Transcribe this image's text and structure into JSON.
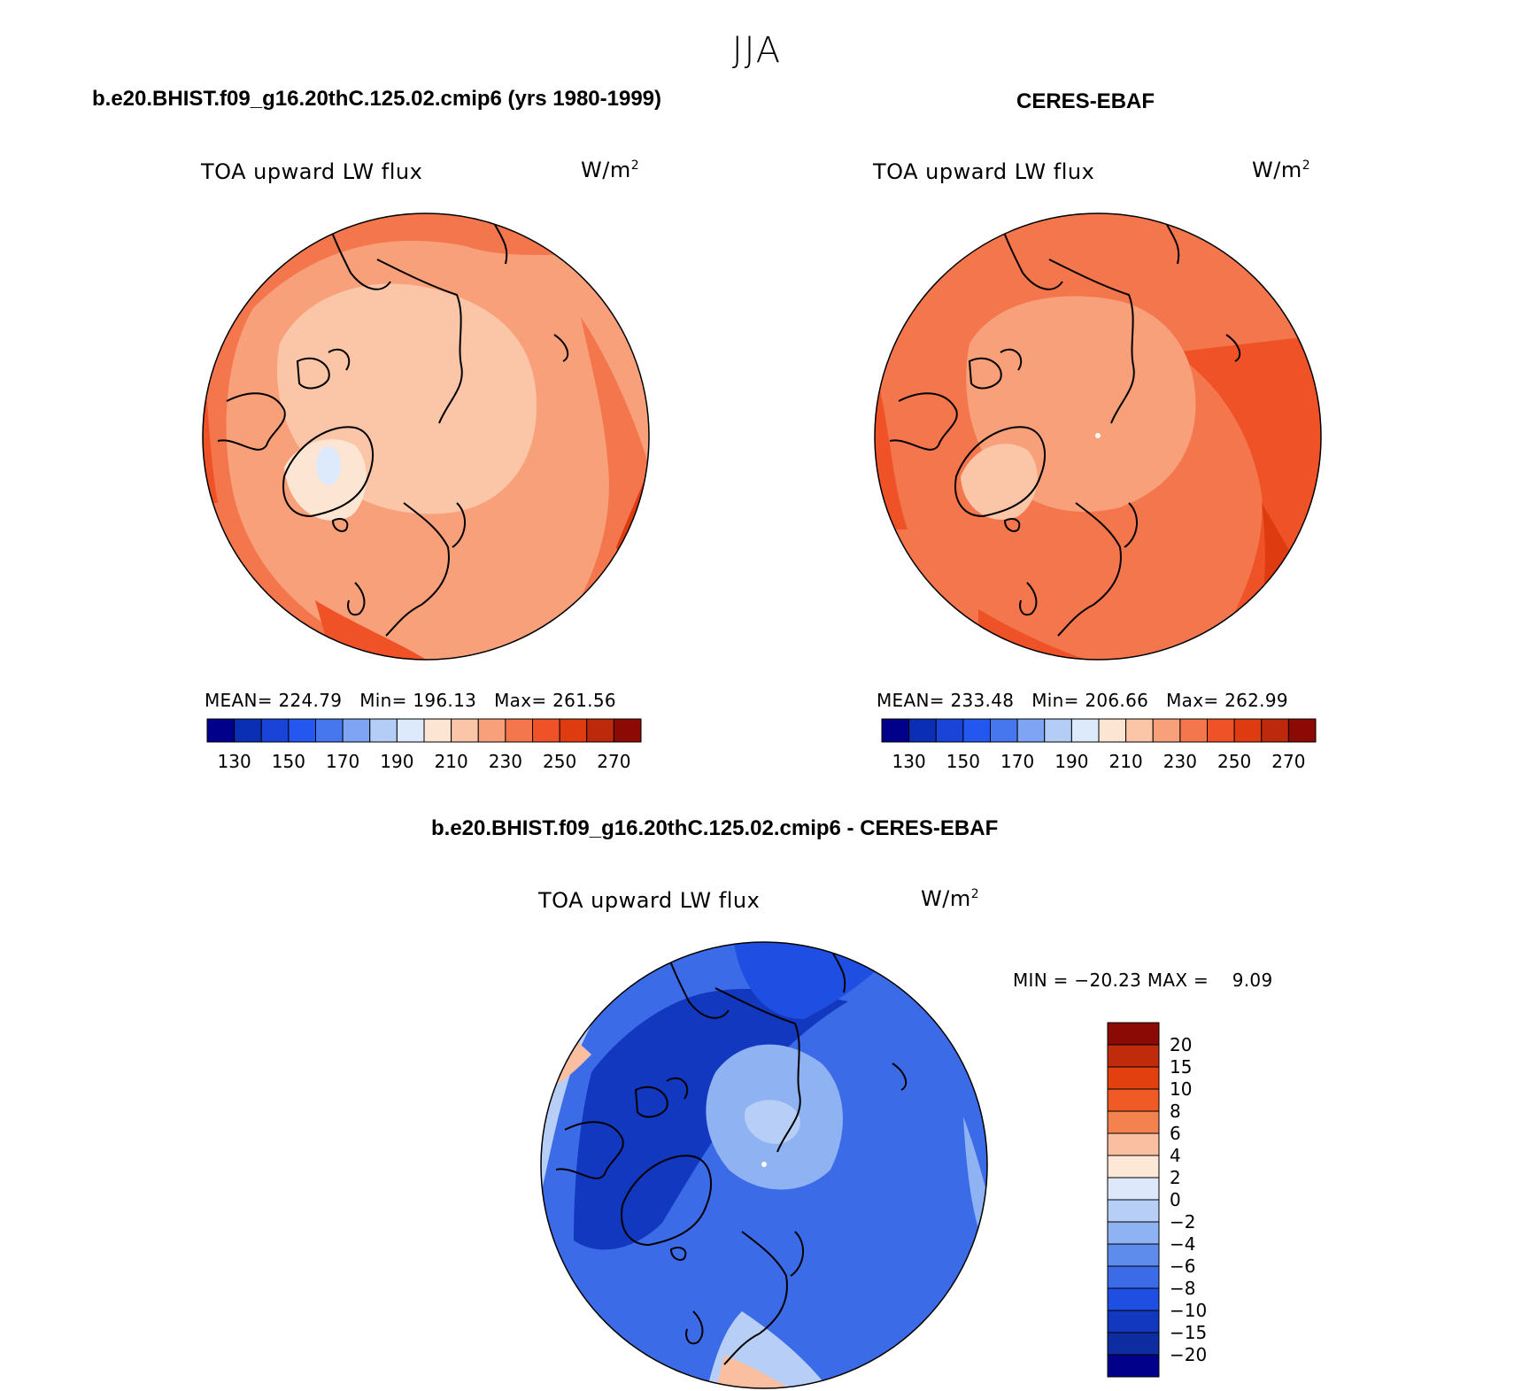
{
  "figure": {
    "title": "JJA"
  },
  "panels": [
    {
      "title": "b.e20.BHIST.f09_g16.20thC.125.02.cmip6 (yrs 1980-1999)",
      "variable": "TOA upward LW flux",
      "units_base": "W/m",
      "units_exp": "2",
      "stats": {
        "mean_label": "MEAN=",
        "mean": "224.79",
        "min_label": "Min=",
        "min": "196.13",
        "max_label": "Max=",
        "max": "261.56"
      }
    },
    {
      "title": "CERES-EBAF",
      "variable": "TOA upward LW flux",
      "units_base": "W/m",
      "units_exp": "2",
      "stats": {
        "mean_label": "MEAN=",
        "mean": "233.48",
        "min_label": "Min=",
        "min": "206.66",
        "max_label": "Max=",
        "max": "262.99"
      }
    },
    {
      "title": "b.e20.BHIST.f09_g16.20thC.125.02.cmip6 - CERES-EBAF",
      "variable": "TOA upward LW flux",
      "units_base": "W/m",
      "units_exp": "2",
      "range_text": "MIN = −20.23 MAX =    9.09"
    }
  ],
  "abs_colorbar": {
    "colors": [
      "#00008b",
      "#0a2fb4",
      "#1a44d8",
      "#2456f0",
      "#4777ee",
      "#7ea4f3",
      "#b3cdf7",
      "#ddeafb",
      "#fde5d3",
      "#fbc5a8",
      "#f8a07a",
      "#f4764d",
      "#ee5226",
      "#df3b10",
      "#bd2a0b",
      "#8c0a05"
    ],
    "labels": [
      "130",
      "150",
      "170",
      "190",
      "210",
      "230",
      "250",
      "270"
    ]
  },
  "diff_colorbar": {
    "colors": [
      "#8c0a05",
      "#c02b0c",
      "#e2410f",
      "#f05a24",
      "#f4824f",
      "#f9bfa0",
      "#fde8d8",
      "#dde9fb",
      "#b7cff6",
      "#8eb2f2",
      "#5e8cec",
      "#3c6be8",
      "#1e4fe2",
      "#1238c0",
      "#0d2da0",
      "#00008b"
    ],
    "labels": [
      "20",
      "15",
      "10",
      "8",
      "6",
      "4",
      "2",
      "0",
      "−2",
      "−4",
      "−6",
      "−8",
      "−10",
      "−15",
      "−20"
    ]
  }
}
